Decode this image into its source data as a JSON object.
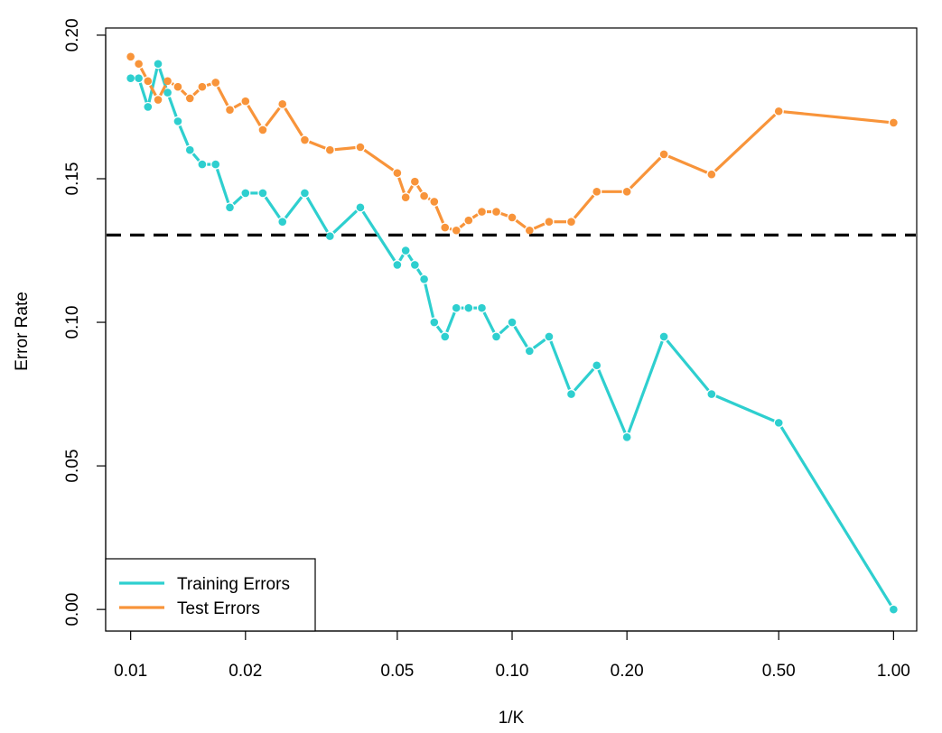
{
  "chart_data": {
    "type": "line",
    "title": "",
    "xlabel": "1/K",
    "ylabel": "Error Rate",
    "x_scale": "log",
    "xlim": [
      0.0086,
      1.15
    ],
    "ylim": [
      -0.0075,
      0.2025
    ],
    "x_ticks": [
      {
        "value": 0.01,
        "label": "0.01"
      },
      {
        "value": 0.02,
        "label": "0.02"
      },
      {
        "value": 0.05,
        "label": "0.05"
      },
      {
        "value": 0.1,
        "label": "0.10"
      },
      {
        "value": 0.2,
        "label": "0.20"
      },
      {
        "value": 0.5,
        "label": "0.50"
      },
      {
        "value": 1.0,
        "label": "1.00"
      }
    ],
    "y_ticks": [
      {
        "value": 0.0,
        "label": "0.00"
      },
      {
        "value": 0.05,
        "label": "0.05"
      },
      {
        "value": 0.1,
        "label": "0.10"
      },
      {
        "value": 0.15,
        "label": "0.15"
      },
      {
        "value": 0.2,
        "label": "0.20"
      }
    ],
    "reference_line": {
      "y": 0.1304,
      "style": "dashed",
      "color": "#000000"
    },
    "legend_position": "bottom-left",
    "grid": false,
    "series": [
      {
        "name": "Training Errors",
        "color": "#2ECFCF",
        "points": [
          {
            "x": 0.01,
            "y": 0.185
          },
          {
            "x": 0.0105,
            "y": 0.185
          },
          {
            "x": 0.0111,
            "y": 0.175
          },
          {
            "x": 0.0118,
            "y": 0.19
          },
          {
            "x": 0.0125,
            "y": 0.18
          },
          {
            "x": 0.0133,
            "y": 0.17
          },
          {
            "x": 0.0143,
            "y": 0.16
          },
          {
            "x": 0.0154,
            "y": 0.155
          },
          {
            "x": 0.0167,
            "y": 0.155
          },
          {
            "x": 0.0182,
            "y": 0.14
          },
          {
            "x": 0.02,
            "y": 0.145
          },
          {
            "x": 0.0222,
            "y": 0.145
          },
          {
            "x": 0.025,
            "y": 0.135
          },
          {
            "x": 0.0286,
            "y": 0.145
          },
          {
            "x": 0.0333,
            "y": 0.13
          },
          {
            "x": 0.04,
            "y": 0.14
          },
          {
            "x": 0.05,
            "y": 0.12
          },
          {
            "x": 0.0526,
            "y": 0.125
          },
          {
            "x": 0.0556,
            "y": 0.12
          },
          {
            "x": 0.0588,
            "y": 0.115
          },
          {
            "x": 0.0625,
            "y": 0.1
          },
          {
            "x": 0.0667,
            "y": 0.095
          },
          {
            "x": 0.0714,
            "y": 0.105
          },
          {
            "x": 0.0769,
            "y": 0.105
          },
          {
            "x": 0.0833,
            "y": 0.105
          },
          {
            "x": 0.0909,
            "y": 0.095
          },
          {
            "x": 0.1,
            "y": 0.1
          },
          {
            "x": 0.1111,
            "y": 0.09
          },
          {
            "x": 0.125,
            "y": 0.095
          },
          {
            "x": 0.1429,
            "y": 0.075
          },
          {
            "x": 0.1667,
            "y": 0.085
          },
          {
            "x": 0.2,
            "y": 0.06
          },
          {
            "x": 0.25,
            "y": 0.095
          },
          {
            "x": 0.3333,
            "y": 0.075
          },
          {
            "x": 0.5,
            "y": 0.065
          },
          {
            "x": 1.0,
            "y": 0.0
          }
        ]
      },
      {
        "name": "Test Errors",
        "color": "#F8943A",
        "points": [
          {
            "x": 0.01,
            "y": 0.1925
          },
          {
            "x": 0.0105,
            "y": 0.19
          },
          {
            "x": 0.0111,
            "y": 0.184
          },
          {
            "x": 0.0118,
            "y": 0.1775
          },
          {
            "x": 0.0125,
            "y": 0.184
          },
          {
            "x": 0.0133,
            "y": 0.182
          },
          {
            "x": 0.0143,
            "y": 0.178
          },
          {
            "x": 0.0154,
            "y": 0.182
          },
          {
            "x": 0.0167,
            "y": 0.1835
          },
          {
            "x": 0.0182,
            "y": 0.174
          },
          {
            "x": 0.02,
            "y": 0.177
          },
          {
            "x": 0.0222,
            "y": 0.167
          },
          {
            "x": 0.025,
            "y": 0.176
          },
          {
            "x": 0.0286,
            "y": 0.1635
          },
          {
            "x": 0.0333,
            "y": 0.16
          },
          {
            "x": 0.04,
            "y": 0.161
          },
          {
            "x": 0.05,
            "y": 0.152
          },
          {
            "x": 0.0526,
            "y": 0.1435
          },
          {
            "x": 0.0556,
            "y": 0.149
          },
          {
            "x": 0.0588,
            "y": 0.144
          },
          {
            "x": 0.0625,
            "y": 0.142
          },
          {
            "x": 0.0667,
            "y": 0.133
          },
          {
            "x": 0.0714,
            "y": 0.132
          },
          {
            "x": 0.0769,
            "y": 0.1355
          },
          {
            "x": 0.0833,
            "y": 0.1385
          },
          {
            "x": 0.0909,
            "y": 0.1385
          },
          {
            "x": 0.1,
            "y": 0.1365
          },
          {
            "x": 0.1111,
            "y": 0.132
          },
          {
            "x": 0.125,
            "y": 0.135
          },
          {
            "x": 0.1429,
            "y": 0.135
          },
          {
            "x": 0.1667,
            "y": 0.1455
          },
          {
            "x": 0.2,
            "y": 0.1455
          },
          {
            "x": 0.25,
            "y": 0.1585
          },
          {
            "x": 0.3333,
            "y": 0.1515
          },
          {
            "x": 0.5,
            "y": 0.1735
          },
          {
            "x": 1.0,
            "y": 0.1695
          }
        ]
      }
    ]
  }
}
